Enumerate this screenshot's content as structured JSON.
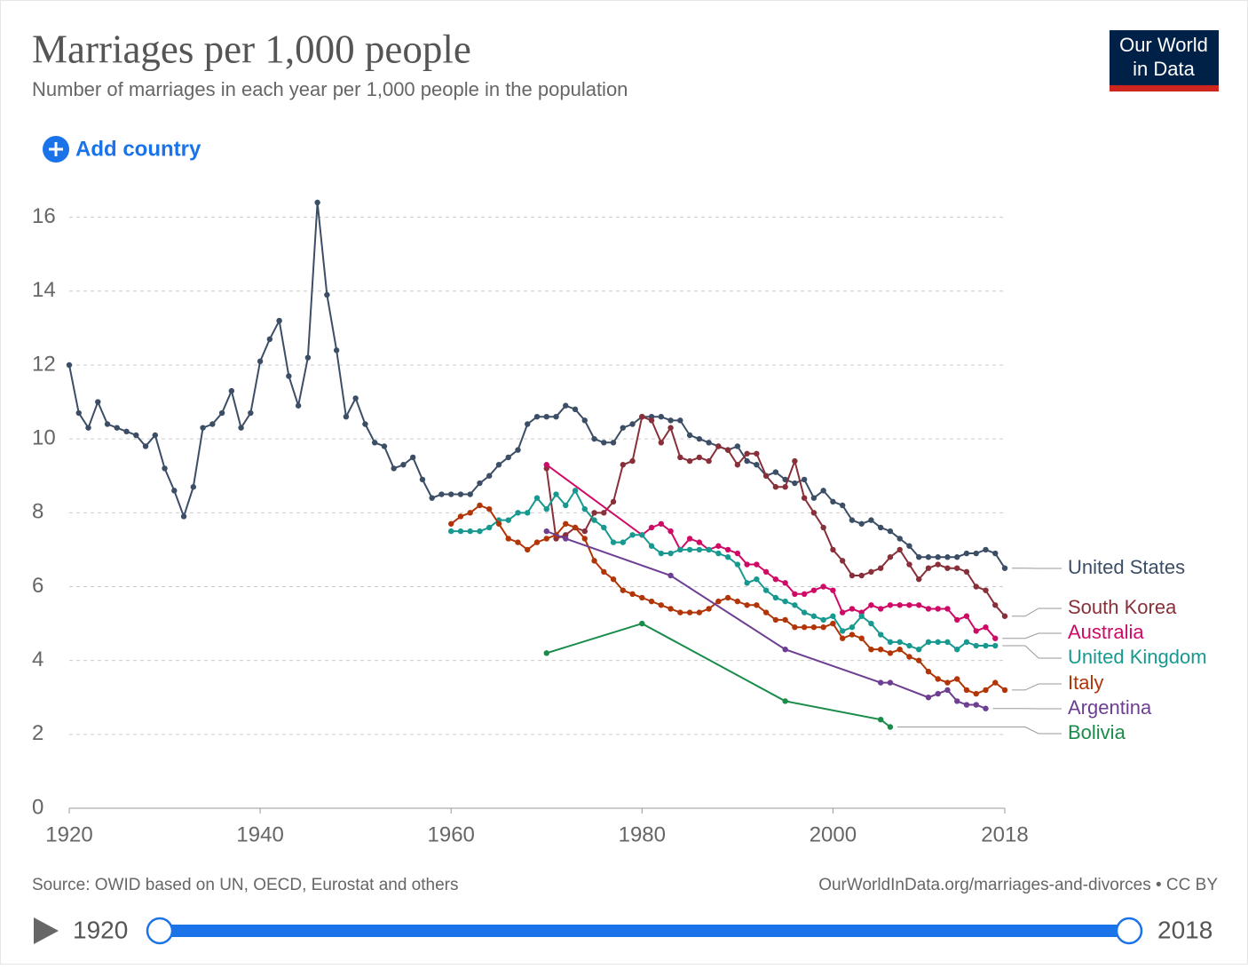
{
  "chart_data": {
    "type": "line",
    "title": "Marriages per 1,000 people",
    "subtitle": "Number of marriages in each year per 1,000 people in the population",
    "logo": "Our World in Data",
    "button": "Add country",
    "source": "Source: OWID based on UN, OECD, Eurostat and others",
    "url": "OurWorldInData.org/marriages-and-divorces • CC BY",
    "timeline": {
      "start": "1920",
      "end": "2018"
    },
    "xlim": [
      1920,
      2018
    ],
    "xticks": [
      1920,
      1940,
      1960,
      1980,
      2000,
      2018
    ],
    "ylim": [
      0,
      16.4
    ],
    "yticks": [
      0,
      2,
      4,
      6,
      8,
      10,
      12,
      14,
      16
    ],
    "grid": true,
    "series": [
      {
        "name": "United States",
        "color": "#3c4e66",
        "x": [
          1920,
          1921,
          1922,
          1923,
          1924,
          1925,
          1926,
          1927,
          1928,
          1929,
          1930,
          1931,
          1932,
          1933,
          1934,
          1935,
          1936,
          1937,
          1938,
          1939,
          1940,
          1941,
          1942,
          1943,
          1944,
          1945,
          1946,
          1947,
          1948,
          1949,
          1950,
          1951,
          1952,
          1953,
          1954,
          1955,
          1956,
          1957,
          1958,
          1959,
          1960,
          1961,
          1962,
          1963,
          1964,
          1965,
          1966,
          1967,
          1968,
          1969,
          1970,
          1971,
          1972,
          1973,
          1974,
          1975,
          1976,
          1977,
          1978,
          1979,
          1980,
          1981,
          1982,
          1983,
          1984,
          1985,
          1986,
          1987,
          1988,
          1989,
          1990,
          1991,
          1992,
          1993,
          1994,
          1995,
          1996,
          1997,
          1998,
          1999,
          2000,
          2001,
          2002,
          2003,
          2004,
          2005,
          2006,
          2007,
          2008,
          2009,
          2010,
          2011,
          2012,
          2013,
          2014,
          2015,
          2016,
          2017,
          2018
        ],
        "values": [
          12.0,
          10.7,
          10.3,
          11.0,
          10.4,
          10.3,
          10.2,
          10.1,
          9.8,
          10.1,
          9.2,
          8.6,
          7.9,
          8.7,
          10.3,
          10.4,
          10.7,
          11.3,
          10.3,
          10.7,
          12.1,
          12.7,
          13.2,
          11.7,
          10.9,
          12.2,
          16.4,
          13.9,
          12.4,
          10.6,
          11.1,
          10.4,
          9.9,
          9.8,
          9.2,
          9.3,
          9.5,
          8.9,
          8.4,
          8.5,
          8.5,
          8.5,
          8.5,
          8.8,
          9.0,
          9.3,
          9.5,
          9.7,
          10.4,
          10.6,
          10.6,
          10.6,
          10.9,
          10.8,
          10.5,
          10.0,
          9.9,
          9.9,
          10.3,
          10.4,
          10.6,
          10.6,
          10.6,
          10.5,
          10.5,
          10.1,
          10.0,
          9.9,
          9.8,
          9.7,
          9.8,
          9.4,
          9.3,
          9.0,
          9.1,
          8.9,
          8.8,
          8.9,
          8.4,
          8.6,
          8.3,
          8.2,
          7.8,
          7.7,
          7.8,
          7.6,
          7.5,
          7.3,
          7.1,
          6.8,
          6.8,
          6.8,
          6.8,
          6.8,
          6.9,
          6.9,
          7.0,
          6.9,
          6.5
        ]
      },
      {
        "name": "South Korea",
        "color": "#883039",
        "x": [
          1970,
          1971,
          1972,
          1973,
          1974,
          1975,
          1976,
          1977,
          1978,
          1979,
          1980,
          1981,
          1982,
          1983,
          1984,
          1985,
          1986,
          1987,
          1988,
          1989,
          1990,
          1991,
          1992,
          1993,
          1994,
          1995,
          1996,
          1997,
          1998,
          1999,
          2000,
          2001,
          2002,
          2003,
          2004,
          2005,
          2006,
          2007,
          2008,
          2009,
          2010,
          2011,
          2012,
          2013,
          2014,
          2015,
          2016,
          2017,
          2018
        ],
        "values": [
          9.2,
          7.3,
          7.4,
          7.6,
          7.5,
          8.0,
          8.0,
          8.3,
          9.3,
          9.4,
          10.6,
          10.5,
          9.9,
          10.3,
          9.5,
          9.4,
          9.5,
          9.4,
          9.8,
          9.7,
          9.3,
          9.6,
          9.6,
          9.0,
          8.7,
          8.7,
          9.4,
          8.4,
          8.0,
          7.6,
          7.0,
          6.7,
          6.3,
          6.3,
          6.4,
          6.5,
          6.8,
          7.0,
          6.6,
          6.2,
          6.5,
          6.6,
          6.5,
          6.5,
          6.4,
          6.0,
          5.9,
          5.5,
          5.2
        ]
      },
      {
        "name": "Australia",
        "color": "#cf0a66",
        "x": [
          1970,
          1980,
          1981,
          1982,
          1983,
          1984,
          1985,
          1986,
          1987,
          1988,
          1989,
          1990,
          1991,
          1992,
          1993,
          1994,
          1995,
          1996,
          1997,
          1998,
          1999,
          2000,
          2001,
          2002,
          2003,
          2004,
          2005,
          2006,
          2007,
          2008,
          2009,
          2010,
          2011,
          2012,
          2013,
          2014,
          2015,
          2016,
          2017
        ],
        "values": [
          9.3,
          7.4,
          7.6,
          7.7,
          7.5,
          7.0,
          7.3,
          7.2,
          7.0,
          7.1,
          7.0,
          6.9,
          6.6,
          6.6,
          6.4,
          6.2,
          6.1,
          5.8,
          5.8,
          5.9,
          6.0,
          5.9,
          5.3,
          5.4,
          5.3,
          5.5,
          5.4,
          5.5,
          5.5,
          5.5,
          5.5,
          5.4,
          5.4,
          5.4,
          5.1,
          5.2,
          4.8,
          4.9,
          4.6
        ]
      },
      {
        "name": "United Kingdom",
        "color": "#18998f",
        "x": [
          1960,
          1961,
          1962,
          1963,
          1964,
          1965,
          1966,
          1967,
          1968,
          1969,
          1970,
          1971,
          1972,
          1973,
          1974,
          1975,
          1976,
          1977,
          1978,
          1979,
          1980,
          1981,
          1982,
          1983,
          1984,
          1985,
          1986,
          1987,
          1988,
          1989,
          1990,
          1991,
          1992,
          1993,
          1994,
          1995,
          1996,
          1997,
          1998,
          1999,
          2000,
          2001,
          2002,
          2003,
          2004,
          2005,
          2006,
          2007,
          2008,
          2009,
          2010,
          2011,
          2012,
          2013,
          2014,
          2015,
          2016,
          2017
        ],
        "values": [
          7.5,
          7.5,
          7.5,
          7.5,
          7.6,
          7.8,
          7.8,
          8.0,
          8.0,
          8.4,
          8.1,
          8.5,
          8.2,
          8.6,
          8.1,
          7.8,
          7.6,
          7.2,
          7.2,
          7.4,
          7.4,
          7.1,
          6.9,
          6.9,
          7.0,
          7.0,
          7.0,
          7.0,
          6.9,
          6.8,
          6.6,
          6.1,
          6.2,
          5.9,
          5.7,
          5.6,
          5.5,
          5.3,
          5.2,
          5.1,
          5.2,
          4.8,
          4.9,
          5.2,
          5.0,
          4.7,
          4.5,
          4.5,
          4.4,
          4.3,
          4.5,
          4.5,
          4.5,
          4.3,
          4.5,
          4.4,
          4.4,
          4.4
        ]
      },
      {
        "name": "Italy",
        "color": "#b13507",
        "x": [
          1960,
          1961,
          1962,
          1963,
          1964,
          1965,
          1966,
          1967,
          1968,
          1969,
          1970,
          1971,
          1972,
          1973,
          1974,
          1975,
          1976,
          1977,
          1978,
          1979,
          1980,
          1981,
          1982,
          1983,
          1984,
          1985,
          1986,
          1987,
          1988,
          1989,
          1990,
          1991,
          1992,
          1993,
          1994,
          1995,
          1996,
          1997,
          1998,
          1999,
          2000,
          2001,
          2002,
          2003,
          2004,
          2005,
          2006,
          2007,
          2008,
          2009,
          2010,
          2011,
          2012,
          2013,
          2014,
          2015,
          2016,
          2017,
          2018
        ],
        "values": [
          7.7,
          7.9,
          8.0,
          8.2,
          8.1,
          7.7,
          7.3,
          7.2,
          7.0,
          7.2,
          7.3,
          7.4,
          7.7,
          7.6,
          7.3,
          6.7,
          6.4,
          6.2,
          5.9,
          5.8,
          5.7,
          5.6,
          5.5,
          5.4,
          5.3,
          5.3,
          5.3,
          5.4,
          5.6,
          5.7,
          5.6,
          5.5,
          5.5,
          5.3,
          5.1,
          5.1,
          4.9,
          4.9,
          4.9,
          4.9,
          5.0,
          4.6,
          4.7,
          4.6,
          4.3,
          4.3,
          4.2,
          4.3,
          4.1,
          4.0,
          3.7,
          3.5,
          3.4,
          3.5,
          3.2,
          3.1,
          3.2,
          3.4,
          3.2
        ]
      },
      {
        "name": "Argentina",
        "color": "#6d3e91",
        "x": [
          1970,
          1972,
          1983,
          1995,
          2005,
          2006,
          2010,
          2011,
          2012,
          2013,
          2014,
          2015,
          2016
        ],
        "values": [
          7.5,
          7.3,
          6.3,
          4.3,
          3.4,
          3.4,
          3.0,
          3.1,
          3.2,
          2.9,
          2.8,
          2.8,
          2.7
        ]
      },
      {
        "name": "Bolivia",
        "color": "#1a8c4a",
        "x": [
          1970,
          1980,
          1995,
          2005,
          2006
        ],
        "values": [
          4.2,
          5.0,
          2.9,
          2.4,
          2.2
        ]
      }
    ]
  }
}
